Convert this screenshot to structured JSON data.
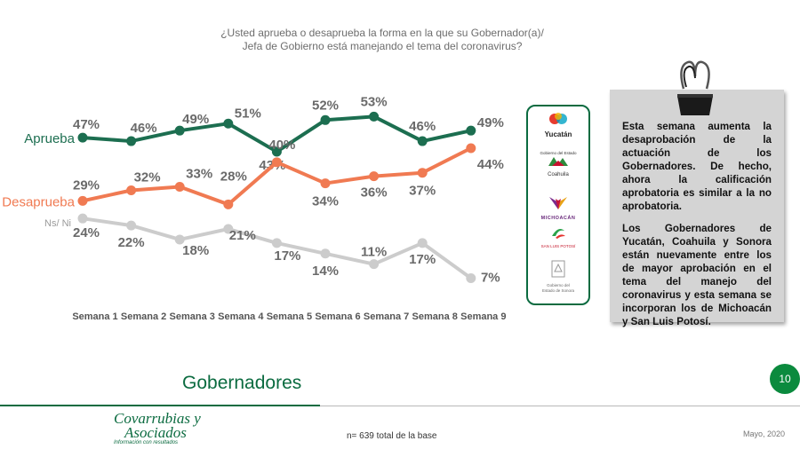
{
  "question_line1": "¿Usted aprueba o desaprueba la forma en la que su Gobernador(a)/",
  "question_line2": "Jefa de Gobierno está manejando el tema del coronavirus?",
  "colors": {
    "aprueba": "#1c6e50",
    "desaprueba": "#f07a52",
    "nsni": "#cccccc",
    "brand": "#0b6b40"
  },
  "chart_data": {
    "type": "line",
    "categories": [
      "Semana 1",
      "Semana 2",
      "Semana 3",
      "Semana 4",
      "Semana 5",
      "Semana 6",
      "Semana 7",
      "Semana 8",
      "Semana 9"
    ],
    "series": [
      {
        "name": "Aprueba",
        "values": [
          47,
          46,
          49,
          51,
          43,
          52,
          53,
          46,
          49
        ]
      },
      {
        "name": "Desaprueba",
        "values": [
          29,
          32,
          33,
          28,
          40,
          34,
          36,
          37,
          44
        ]
      },
      {
        "name": "Ns/ Ni",
        "values": [
          24,
          22,
          18,
          21,
          17,
          14,
          11,
          17,
          7
        ]
      }
    ]
  },
  "logos": {
    "yucatan": "Yucatán",
    "coahuila_top": "Gobierno del Estado",
    "coahuila": "Coahuila",
    "michoacan": "MICHOACÁN",
    "slp": "SAN LUIS POTOSÍ",
    "sonora1": "Gobierno del",
    "sonora2": "Estado de Sonora"
  },
  "note": {
    "p1": "Esta semana aumenta la desaprobación de la actuación de los Gobernadores. De hecho, ahora la calificación aprobatoria es similar a la no aprobatoria.",
    "p2": "Los Gobernadores de Yucatán, Coahuila y Sonora están nuevamente entre los de mayor aprobación en el tema del manejo del coronavirus y esta semana se incorporan los de Michoacán y San Luis Potosí."
  },
  "section_title": "Gobernadores",
  "page_number": "10",
  "brand": {
    "line1": "Covarrubias y",
    "line2": "Asociados",
    "tag": "Información con resultados"
  },
  "footnote": "n= 639 total de la base",
  "date": "Mayo, 2020"
}
